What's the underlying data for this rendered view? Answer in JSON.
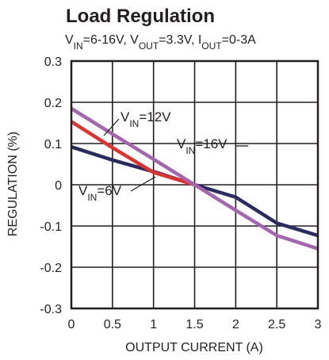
{
  "chart_data": {
    "type": "line",
    "title": "Load Regulation",
    "subtitle": {
      "parts": [
        {
          "text": "V",
          "sub": false
        },
        {
          "text": "IN",
          "sub": true
        },
        {
          "text": "=6-16V, V",
          "sub": false
        },
        {
          "text": "OUT",
          "sub": true
        },
        {
          "text": "=3.3V, I",
          "sub": false
        },
        {
          "text": "OUT",
          "sub": true
        },
        {
          "text": "=0-3A",
          "sub": false
        }
      ]
    },
    "xlabel": "OUTPUT CURRENT (A)",
    "ylabel": "REGULATION (%)",
    "xlim": [
      0,
      3
    ],
    "ylim": [
      -0.3,
      0.3
    ],
    "x_ticks": [
      "0",
      "0.5",
      "1",
      "1.5",
      "2",
      "2.5",
      "3"
    ],
    "y_ticks": [
      "0.3",
      "0.2",
      "0.1",
      "0",
      "-0.1",
      "-0.2",
      "-0.3"
    ],
    "grid": true,
    "series": [
      {
        "name": "VIN=6V",
        "label_parts": [
          {
            "text": "V",
            "sub": false
          },
          {
            "text": "IN",
            "sub": true
          },
          {
            "text": "=6V",
            "sub": false
          }
        ],
        "color": "#2b2b63",
        "x": [
          0,
          0.5,
          1,
          1.5,
          2,
          2.5,
          3
        ],
        "y": [
          0.092,
          0.06,
          0.032,
          0.0,
          -0.03,
          -0.093,
          -0.123
        ]
      },
      {
        "name": "VIN=12V",
        "label_parts": [
          {
            "text": "V",
            "sub": false
          },
          {
            "text": "IN",
            "sub": true
          },
          {
            "text": "=12V",
            "sub": false
          }
        ],
        "color": "#e4302d",
        "x": [
          0,
          0.5,
          1,
          1.5
        ],
        "y": [
          0.153,
          0.09,
          0.03,
          0.0
        ]
      },
      {
        "name": "VIN=16V",
        "label_parts": [
          {
            "text": "V",
            "sub": false
          },
          {
            "text": "IN",
            "sub": true
          },
          {
            "text": "=16V",
            "sub": false
          }
        ],
        "color": "#a663b0",
        "x": [
          0,
          0.5,
          1,
          1.5,
          2,
          2.5,
          3
        ],
        "y": [
          0.185,
          0.123,
          0.062,
          0.0,
          -0.062,
          -0.123,
          -0.155
        ]
      }
    ]
  }
}
